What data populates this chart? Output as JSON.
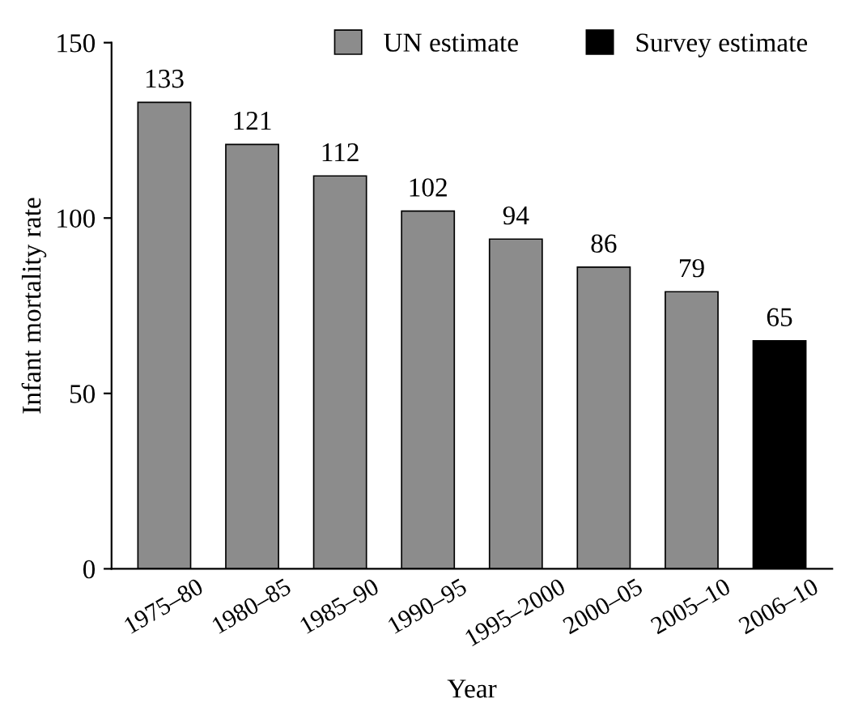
{
  "chart_data": {
    "type": "bar",
    "xlabel": "Year",
    "ylabel": "Infant mortality rate",
    "categories": [
      "1975–80",
      "1980–85",
      "1985–90",
      "1990–95",
      "1995–2000",
      "2000–05",
      "2005–10",
      "2006–10"
    ],
    "series": [
      {
        "name": "UN estimate",
        "color": "#8c8c8c",
        "values": [
          133,
          121,
          112,
          102,
          94,
          86,
          79,
          null
        ]
      },
      {
        "name": "Survey estimate",
        "color": "#000000",
        "values": [
          null,
          null,
          null,
          null,
          null,
          null,
          null,
          65
        ]
      }
    ],
    "ylim": [
      0,
      150
    ],
    "yticks": [
      0,
      50,
      100,
      150
    ],
    "grid": false,
    "legend": "top right",
    "data_labels": true
  }
}
